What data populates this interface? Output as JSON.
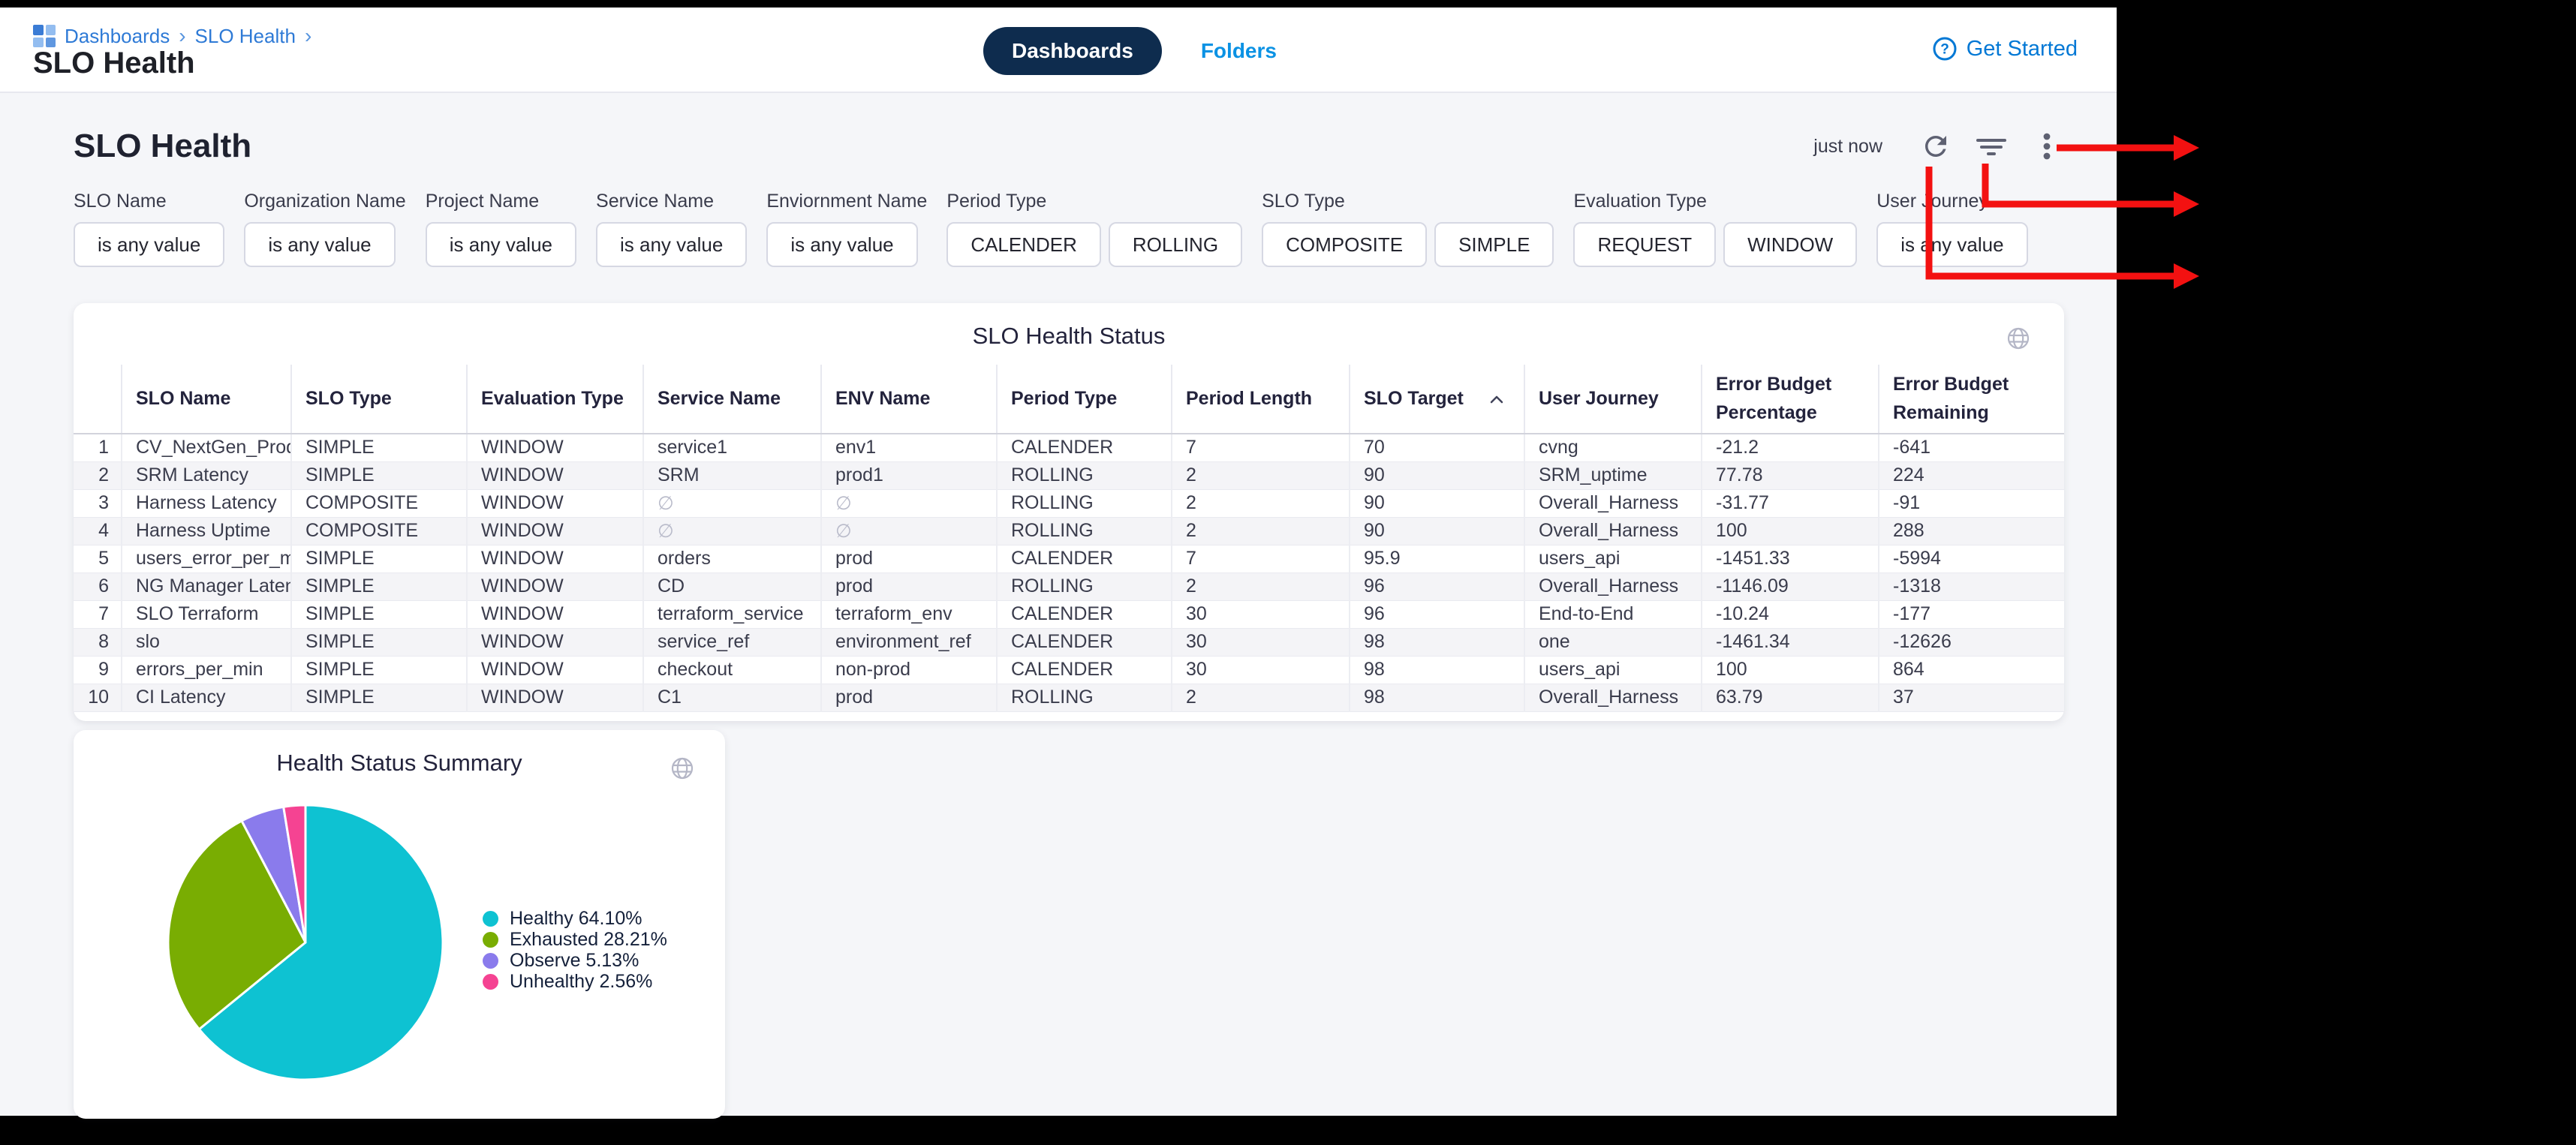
{
  "topbar": {
    "breadcrumb": {
      "items": [
        "Dashboards",
        "SLO Health"
      ],
      "separator": "›"
    },
    "page_title": "SLO Health",
    "tabs": [
      {
        "label": "Dashboards",
        "active": true
      },
      {
        "label": "Folders",
        "active": false
      }
    ],
    "get_started": "Get Started"
  },
  "dashboard": {
    "title": "SLO Health",
    "last_refresh": "just now"
  },
  "filters": [
    {
      "label": "SLO Name",
      "buttons": [
        "is any value"
      ]
    },
    {
      "label": "Organization Name",
      "buttons": [
        "is any value"
      ]
    },
    {
      "label": "Project Name",
      "buttons": [
        "is any value"
      ]
    },
    {
      "label": "Service Name",
      "buttons": [
        "is any value"
      ]
    },
    {
      "label": "Enviornment Name",
      "buttons": [
        "is any value"
      ]
    },
    {
      "label": "Period Type",
      "buttons": [
        "CALENDER",
        "ROLLING"
      ]
    },
    {
      "label": "SLO Type",
      "buttons": [
        "COMPOSITE",
        "SIMPLE"
      ]
    },
    {
      "label": "Evaluation Type",
      "buttons": [
        "REQUEST",
        "WINDOW"
      ]
    },
    {
      "label": "User Journey",
      "buttons": [
        "is any value"
      ]
    }
  ],
  "table": {
    "title": "SLO Health Status",
    "columns": [
      "SLO Name",
      "SLO Type",
      "Evaluation Type",
      "Service Name",
      "ENV Name",
      "Period Type",
      "Period Length",
      "SLO Target",
      "User Journey",
      "Error Budget\nPercentage",
      "Error Budget\nRemaining"
    ],
    "sort_column": "SLO Target",
    "sort_direction": "asc",
    "rows": [
      [
        "1",
        "CV_NextGen_Prod",
        "SIMPLE",
        "WINDOW",
        "service1",
        "env1",
        "CALENDER",
        "7",
        "70",
        "cvng",
        "-21.2",
        "-641"
      ],
      [
        "2",
        "SRM Latency",
        "SIMPLE",
        "WINDOW",
        "SRM",
        "prod1",
        "ROLLING",
        "2",
        "90",
        "SRM_uptime",
        "77.78",
        "224"
      ],
      [
        "3",
        "Harness Latency",
        "COMPOSITE",
        "WINDOW",
        "∅",
        "∅",
        "ROLLING",
        "2",
        "90",
        "Overall_Harness",
        "-31.77",
        "-91"
      ],
      [
        "4",
        "Harness Uptime",
        "COMPOSITE",
        "WINDOW",
        "∅",
        "∅",
        "ROLLING",
        "2",
        "90",
        "Overall_Harness",
        "100",
        "288"
      ],
      [
        "5",
        "users_error_per_min",
        "SIMPLE",
        "WINDOW",
        "orders",
        "prod",
        "CALENDER",
        "7",
        "95.9",
        "users_api",
        "-1451.33",
        "-5994"
      ],
      [
        "6",
        "NG Manager Latency",
        "SIMPLE",
        "WINDOW",
        "CD",
        "prod",
        "ROLLING",
        "2",
        "96",
        "Overall_Harness",
        "-1146.09",
        "-1318"
      ],
      [
        "7",
        "SLO Terraform",
        "SIMPLE",
        "WINDOW",
        "terraform_service",
        "terraform_env",
        "CALENDER",
        "30",
        "96",
        "End-to-End",
        "-10.24",
        "-177"
      ],
      [
        "8",
        "slo",
        "SIMPLE",
        "WINDOW",
        "service_ref",
        "environment_ref",
        "CALENDER",
        "30",
        "98",
        "one",
        "-1461.34",
        "-12626"
      ],
      [
        "9",
        "errors_per_min",
        "SIMPLE",
        "WINDOW",
        "checkout",
        "non-prod",
        "CALENDER",
        "30",
        "98",
        "users_api",
        "100",
        "864"
      ],
      [
        "10",
        "CI Latency",
        "SIMPLE",
        "WINDOW",
        "C1",
        "prod",
        "ROLLING",
        "2",
        "98",
        "Overall_Harness",
        "63.79",
        "37"
      ]
    ]
  },
  "chart_data": {
    "type": "pie",
    "title": "Health Status Summary",
    "labels": [
      "Healthy",
      "Exhausted",
      "Observe",
      "Unhealthy"
    ],
    "values": [
      64.1,
      28.21,
      5.13,
      2.56
    ],
    "colors": [
      "#0ec2d2",
      "#79ad02",
      "#8a7bec",
      "#f54392"
    ],
    "legend": [
      "Healthy 64.10%",
      "Exhausted 28.21%",
      "Observe 5.13%",
      "Unhealthy 2.56%"
    ],
    "legend_position": "right",
    "start_angle": 0,
    "direction": "clockwise"
  },
  "icons": {
    "breadcrumb_logo": "dashboard-tiles",
    "help": "question-mark-in-circle",
    "refresh": "circular-arrow",
    "filter": "funnel-lines",
    "more": "kebab-vertical-dots",
    "globe": "globe",
    "sort_asc": "chevron-up",
    "null_value": "∅"
  },
  "theme": {
    "accent_blue": "#0278d5",
    "folders_blue": "#0b92e4",
    "tab_active_bg": "#0e2c4e",
    "annotation_red": "#f31111",
    "page_bg": "#f5f6f9",
    "card_bg": "#ffffff",
    "stripe_bg": "#f4f4f7",
    "text_dark": "#23233c"
  }
}
